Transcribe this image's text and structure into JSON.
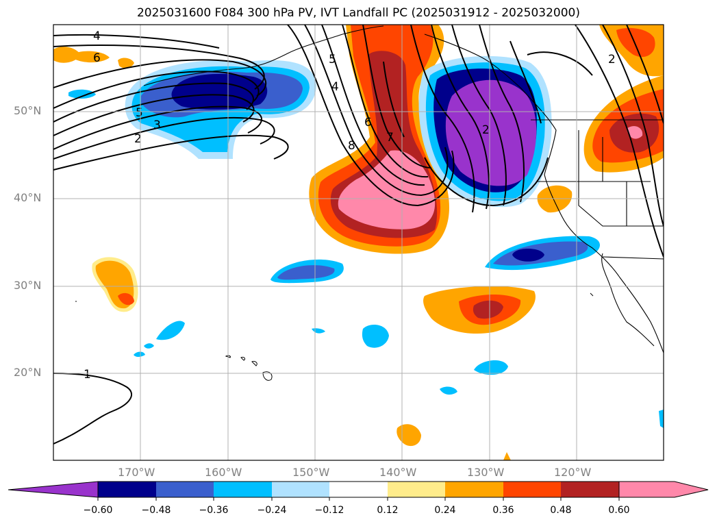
{
  "title": "2025031600 F084 300 hPa PV, IVT Landfall PC (2025031912 - 2025032000)",
  "lon_labels": [
    "170°W",
    "160°W",
    "150°W",
    "140°W",
    "130°W",
    "120°W"
  ],
  "lat_labels": [
    "50°N",
    "40°N",
    "30°N",
    "20°N"
  ],
  "contour_labels": [
    "4",
    "6",
    "5",
    "3",
    "2",
    "5",
    "4",
    "6",
    "8",
    "7",
    "2",
    "2",
    "1"
  ],
  "colorbar": {
    "ticks": [
      "−0.60",
      "−0.48",
      "−0.36",
      "−0.24",
      "−0.12",
      "0.12",
      "0.24",
      "0.36",
      "0.48",
      "0.60"
    ],
    "colors": [
      "#9933cc",
      "#00008b",
      "#3a5fcd",
      "#00bfff",
      "#b0e2ff",
      "#ffffff",
      "#ffec8b",
      "#ffa500",
      "#ff4500",
      "#b22222",
      "#ff88aa"
    ]
  }
}
